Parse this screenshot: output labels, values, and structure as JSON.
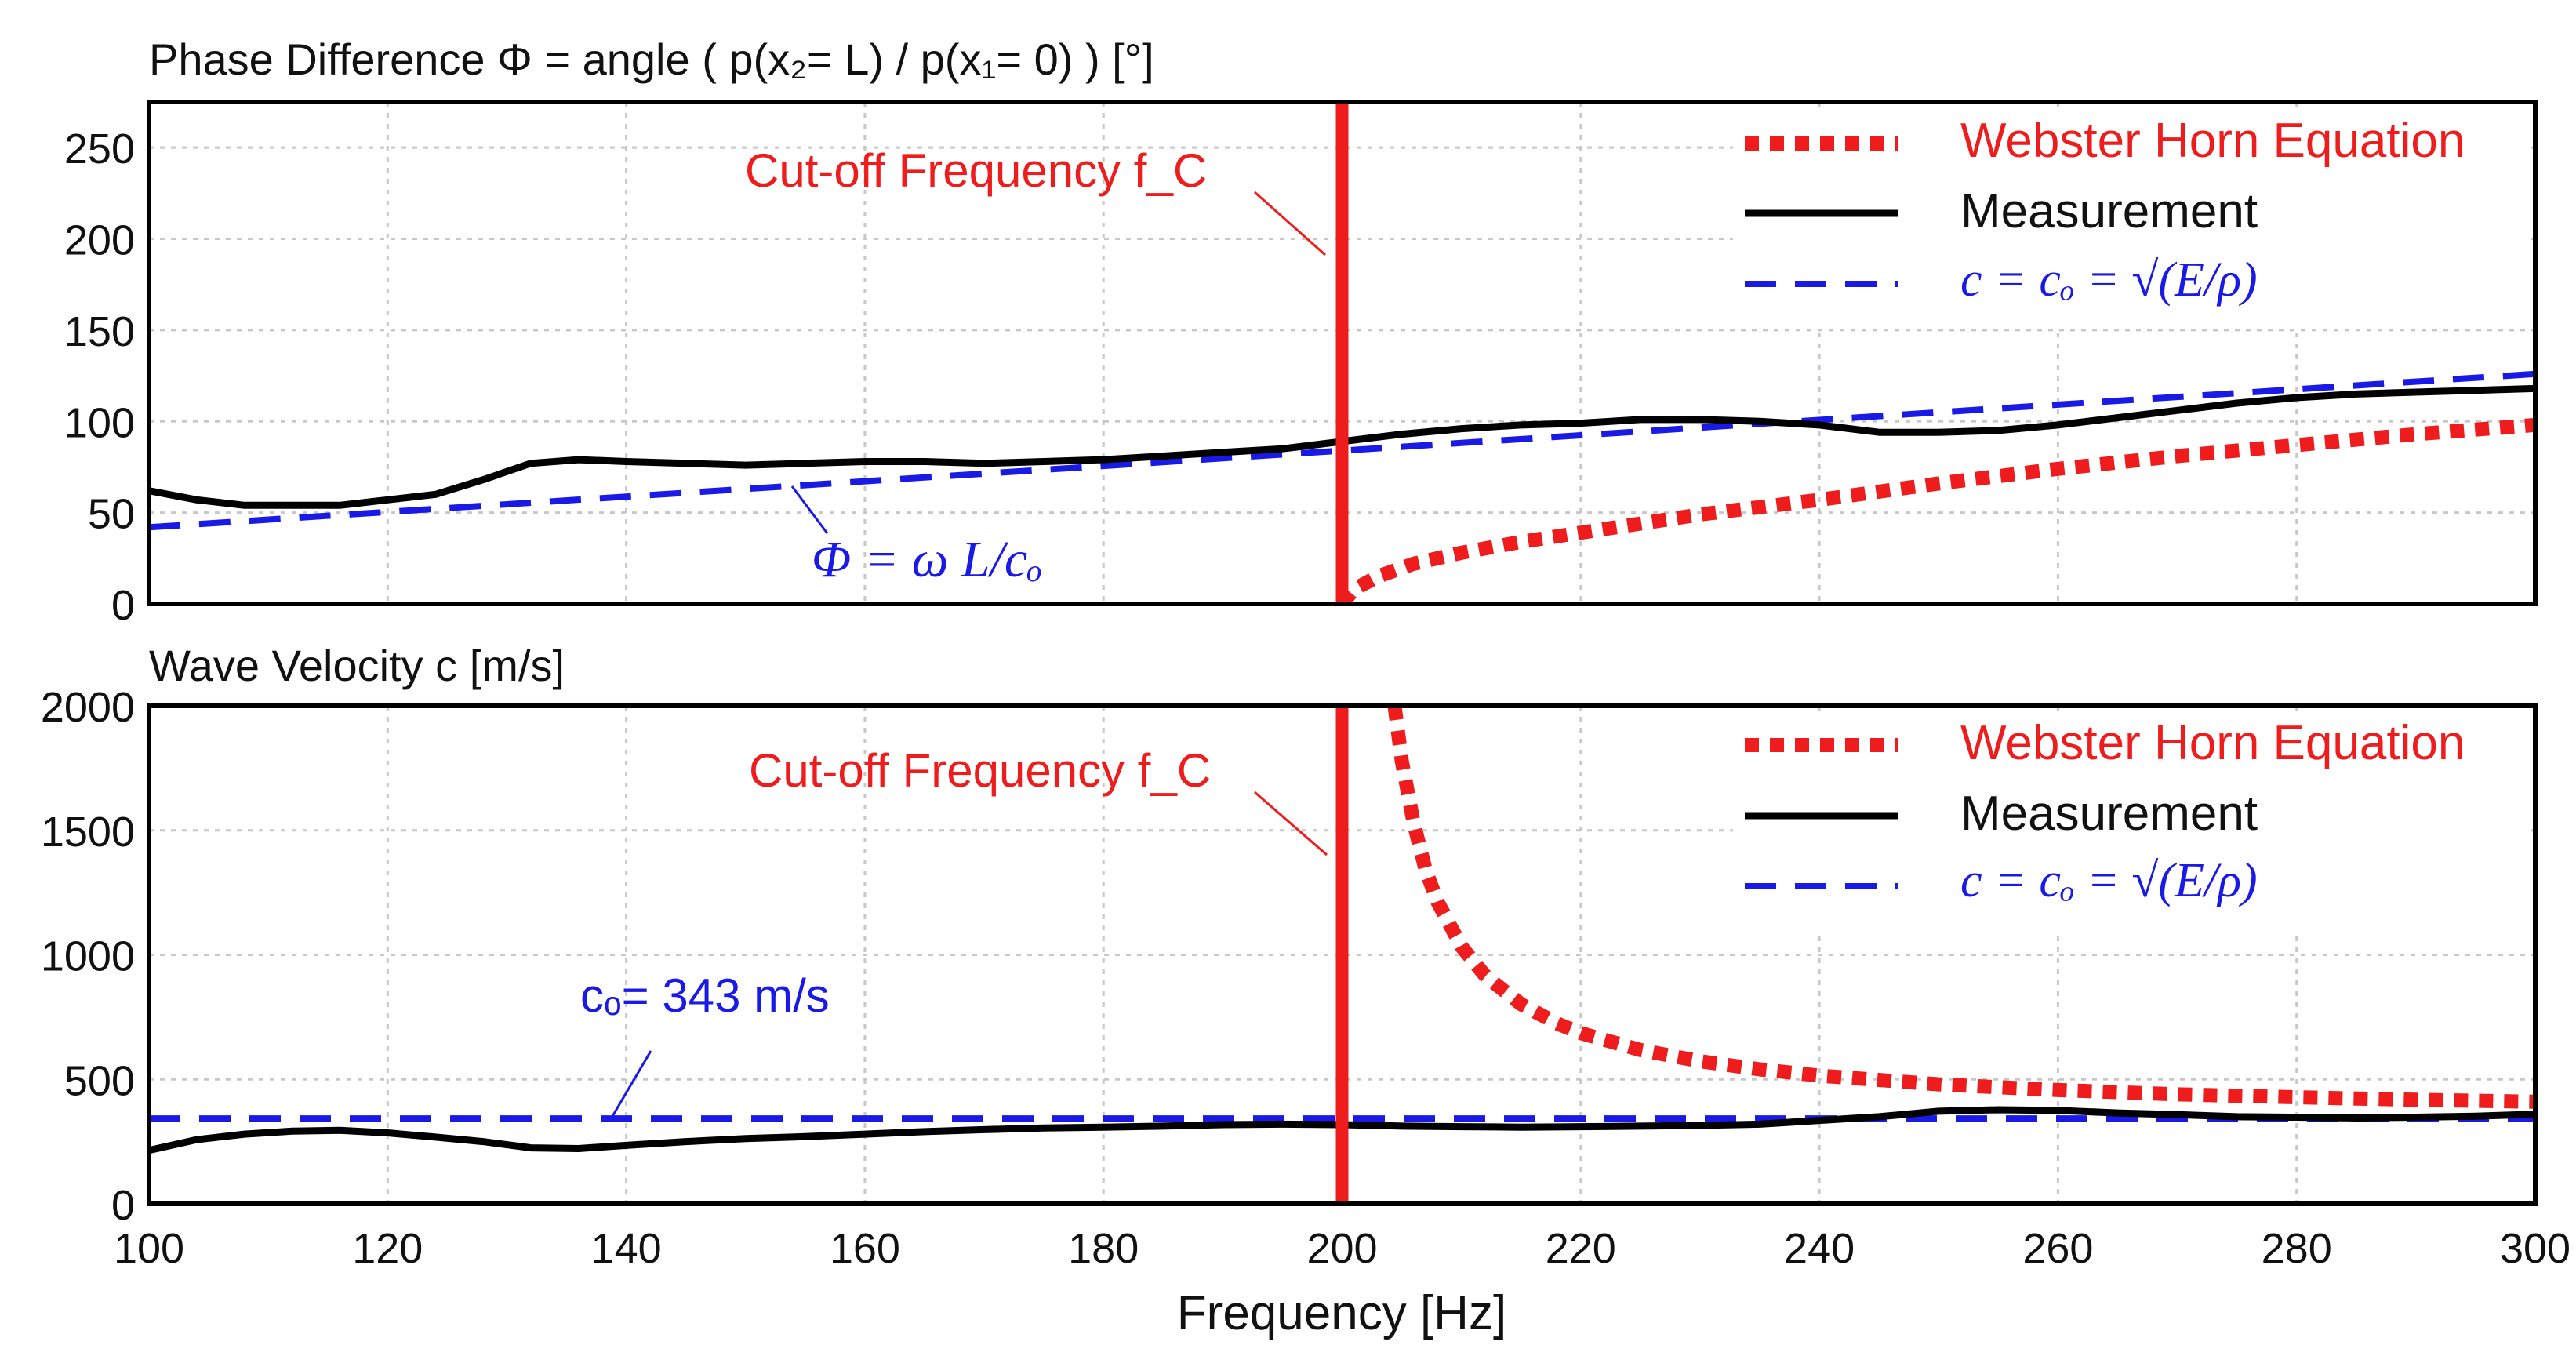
{
  "colors": {
    "webster": "#ee1c1c",
    "measurement": "#000000",
    "reference": "#1a1ae6",
    "cutoff": "#ee1c1c",
    "grid": "#c8c8c8"
  },
  "xlabel": "Frequency [Hz]",
  "legend": {
    "webster": "Webster Horn Equation",
    "measurement": "Measurement",
    "reference": "c = cₒ = √(E/ρ)"
  },
  "chart_data": [
    {
      "type": "line",
      "title": "Phase Difference Φ = angle ( p(x₂= L) / p(x₁= 0) ) [°]",
      "xlabel": "Frequency [Hz]",
      "ylabel": "",
      "xlim": [
        100,
        300
      ],
      "ylim": [
        0,
        275
      ],
      "xticks": [
        100,
        120,
        140,
        160,
        180,
        200,
        220,
        240,
        260,
        280,
        300
      ],
      "yticks": [
        0,
        50,
        100,
        150,
        200,
        250
      ],
      "grid": true,
      "legend_position": "top-right",
      "cutoff_frequency": 200,
      "annotations": {
        "cutoff": "Cut-off Frequency f_C",
        "reference_curve": "Φ = ω L/cₒ"
      },
      "series": [
        {
          "name": "Measurement",
          "style": "solid",
          "x": [
            100,
            104,
            108,
            112,
            116,
            120,
            124,
            128,
            132,
            136,
            140,
            145,
            150,
            155,
            160,
            165,
            170,
            175,
            180,
            185,
            190,
            195,
            200,
            205,
            210,
            215,
            220,
            225,
            230,
            235,
            240,
            245,
            250,
            255,
            260,
            265,
            270,
            275,
            280,
            285,
            290,
            295,
            300
          ],
          "y": [
            62,
            57,
            54,
            54,
            54,
            57,
            60,
            68,
            77,
            79,
            78,
            77,
            76,
            77,
            78,
            78,
            77,
            78,
            79,
            81,
            83,
            85,
            89,
            93,
            96,
            98,
            99,
            101,
            101,
            100,
            98,
            94,
            94,
            95,
            98,
            102,
            106,
            110,
            113,
            115,
            116,
            117,
            118
          ]
        },
        {
          "name": "c = cₒ = √(E/ρ)",
          "style": "dashed",
          "x": [
            100,
            300
          ],
          "y": [
            42,
            126
          ]
        },
        {
          "name": "Webster Horn Equation",
          "style": "dotted",
          "x": [
            200,
            201,
            203,
            206,
            210,
            215,
            220,
            230,
            240,
            250,
            260,
            270,
            280,
            290,
            300
          ],
          "y": [
            0,
            8,
            15,
            22,
            28,
            34,
            39,
            49,
            57,
            66,
            74,
            81,
            87,
            93,
            98
          ]
        }
      ]
    },
    {
      "type": "line",
      "title": "Wave Velocity c [m/s]",
      "xlabel": "Frequency [Hz]",
      "ylabel": "",
      "xlim": [
        100,
        300
      ],
      "ylim": [
        0,
        2000
      ],
      "xticks": [
        100,
        120,
        140,
        160,
        180,
        200,
        220,
        240,
        260,
        280,
        300
      ],
      "yticks": [
        0,
        500,
        1000,
        1500,
        2000
      ],
      "grid": true,
      "legend_position": "top-right",
      "cutoff_frequency": 200,
      "annotations": {
        "cutoff": "Cut-off Frequency f_C",
        "reference_curve": "cₒ= 343 m/s"
      },
      "series": [
        {
          "name": "Measurement",
          "style": "solid",
          "x": [
            100,
            104,
            108,
            112,
            116,
            120,
            124,
            128,
            132,
            136,
            140,
            145,
            150,
            155,
            160,
            165,
            170,
            175,
            180,
            185,
            190,
            195,
            200,
            205,
            210,
            215,
            220,
            225,
            230,
            235,
            240,
            245,
            250,
            255,
            260,
            265,
            270,
            275,
            280,
            285,
            290,
            295,
            300
          ],
          "y": [
            215,
            258,
            280,
            292,
            295,
            285,
            268,
            250,
            225,
            222,
            235,
            250,
            262,
            270,
            280,
            290,
            298,
            305,
            308,
            312,
            318,
            320,
            318,
            312,
            310,
            308,
            310,
            312,
            315,
            320,
            335,
            350,
            372,
            378,
            375,
            365,
            358,
            350,
            348,
            345,
            348,
            352,
            360
          ]
        },
        {
          "name": "c = cₒ = √(E/ρ)",
          "style": "dashed",
          "x": [
            100,
            300
          ],
          "y": [
            343,
            343
          ]
        },
        {
          "name": "Webster Horn Equation",
          "style": "dotted",
          "x": [
            204.4,
            205,
            206,
            207,
            208,
            210,
            212,
            215,
            218,
            220,
            225,
            230,
            235,
            240,
            250,
            260,
            270,
            280,
            290,
            300
          ],
          "y": [
            2000,
            1779,
            1529,
            1341,
            1213,
            1033,
            916,
            802,
            725,
            686,
            618,
            573,
            540,
            515,
            480,
            457,
            440,
            428,
            418,
            410
          ]
        }
      ]
    }
  ]
}
